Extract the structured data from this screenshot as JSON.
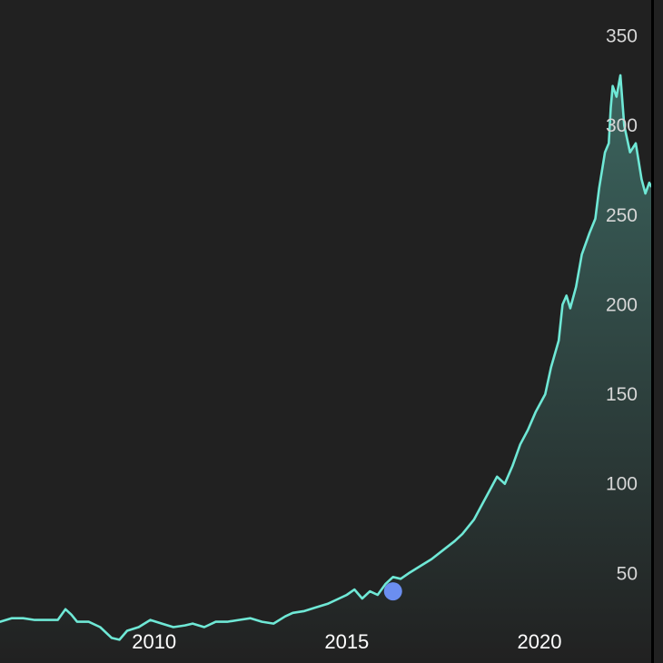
{
  "chart_data": {
    "type": "area",
    "title": "",
    "xlabel": "",
    "ylabel": "",
    "xlim": [
      2006.0,
      2022.9
    ],
    "ylim": [
      0,
      370
    ],
    "y_axis_side": "right",
    "grid": false,
    "x_ticks": [
      "2010",
      "2015",
      "2020"
    ],
    "y_ticks": [
      "50",
      "100",
      "150",
      "200",
      "250",
      "300",
      "350"
    ],
    "colors": {
      "background": "#212121",
      "line": "#6fe8d6",
      "fill": "#6fe8d6",
      "marker": "#6b8ef0",
      "axis_line": "#000000"
    },
    "marker": {
      "x": 2016.2,
      "y": 40
    },
    "series": [
      {
        "x": [
          2006.0,
          2006.3,
          2006.6,
          2006.9,
          2007.2,
          2007.5,
          2007.7,
          2007.85,
          2008.0,
          2008.3,
          2008.6,
          2008.9,
          2009.1,
          2009.3,
          2009.6,
          2009.9,
          2010.2,
          2010.5,
          2010.8,
          2011.0,
          2011.3,
          2011.6,
          2011.9,
          2012.2,
          2012.5,
          2012.8,
          2013.1,
          2013.4,
          2013.6,
          2013.9,
          2014.2,
          2014.5,
          2014.8,
          2015.0,
          2015.2,
          2015.4,
          2015.6,
          2015.8,
          2016.0,
          2016.2,
          2016.4,
          2016.6,
          2016.9,
          2017.2,
          2017.5,
          2017.8,
          2018.0,
          2018.3,
          2018.5,
          2018.7,
          2018.9,
          2019.1,
          2019.3,
          2019.5,
          2019.7,
          2019.9,
          2020.1,
          2020.15,
          2020.3,
          2020.5,
          2020.6,
          2020.7,
          2020.8,
          2020.95,
          2021.1,
          2021.3,
          2021.45,
          2021.55,
          2021.7,
          2021.8,
          2021.85,
          2021.9,
          2022.0,
          2022.1,
          2022.2,
          2022.35,
          2022.5,
          2022.65,
          2022.75,
          2022.85,
          2022.9
        ],
        "values": [
          23,
          25,
          25,
          24,
          24,
          24,
          30,
          27,
          23,
          23,
          20,
          14,
          13,
          18,
          20,
          24,
          22,
          20,
          21,
          22,
          20,
          23,
          23,
          24,
          25,
          23,
          22,
          26,
          28,
          29,
          31,
          33,
          36,
          38,
          41,
          36,
          40,
          38,
          44,
          48,
          47,
          50,
          54,
          58,
          63,
          68,
          72,
          80,
          88,
          96,
          104,
          100,
          110,
          122,
          130,
          140,
          148,
          150,
          165,
          180,
          200,
          205,
          198,
          210,
          228,
          240,
          248,
          265,
          285,
          290,
          310,
          322,
          316,
          328,
          300,
          285,
          290,
          270,
          262,
          268,
          266
        ]
      }
    ]
  }
}
